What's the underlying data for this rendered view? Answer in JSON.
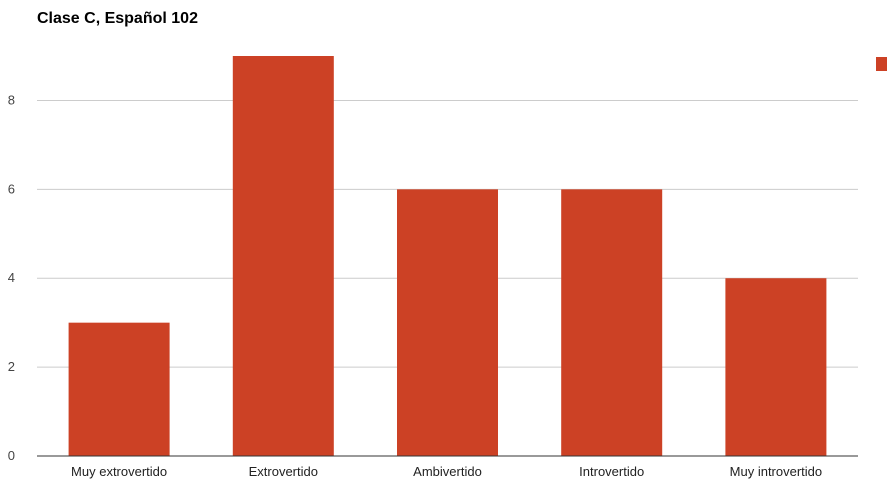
{
  "colors": {
    "bar": "#cc4125",
    "grid": "#cccccc",
    "baseline": "#333333",
    "background": "#ffffff"
  },
  "chart_data": {
    "type": "bar",
    "title": "Clase C, Español 102",
    "xlabel": "",
    "ylabel": "",
    "categories": [
      "Muy extrovertido",
      "Extrovertido",
      "Ambivertido",
      "Introvertido",
      "Muy introvertido"
    ],
    "series": [
      {
        "values": [
          3,
          9,
          6,
          6,
          4
        ]
      }
    ],
    "ylim": [
      0,
      9
    ],
    "yticks": [
      0,
      2,
      4,
      6,
      8
    ],
    "grid": true,
    "legend": "top-right",
    "legend_entries": [
      ""
    ]
  }
}
